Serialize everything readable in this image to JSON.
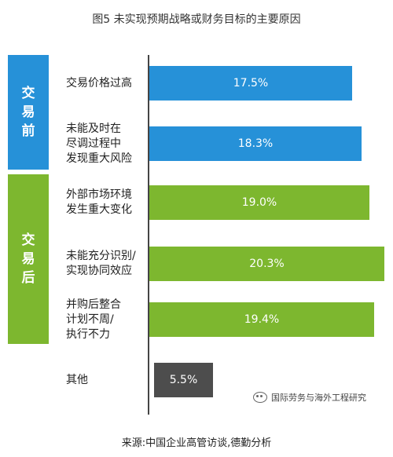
{
  "title": "图5 未实现预期战略或财务目标的主要原因",
  "source": "来源:中国企业高管访谈,德勤分析",
  "watermark": "国际劳务与海外工程研究",
  "colors": {
    "pre": "#2691d8",
    "post": "#7db72f",
    "other": "#4d4d4d"
  },
  "phases": [
    {
      "label": "交易前",
      "color": "#2691d8"
    },
    {
      "label": "交易后",
      "color": "#7db72f"
    }
  ],
  "chart_data": {
    "type": "bar",
    "orientation": "horizontal",
    "title": "图5 未实现预期战略或财务目标的主要原因",
    "categories": [
      "交易价格过高",
      "未能及时在尽调过程中发现重大风险",
      "外部市场环境发生重大变化",
      "未能充分识别/实现协同效应",
      "并购后整合计划不周/执行不力",
      "其他"
    ],
    "category_lines": [
      [
        "交易价格过高"
      ],
      [
        "未能及时在",
        "尽调过程中",
        "发现重大风险"
      ],
      [
        "外部市场环境",
        "发生重大变化"
      ],
      [
        "未能充分识别/",
        "实现协同效应"
      ],
      [
        "并购后整合",
        "计划不周/",
        "执行不力"
      ],
      [
        "其他"
      ]
    ],
    "values": [
      17.5,
      18.3,
      19.0,
      20.3,
      19.4,
      5.5
    ],
    "value_labels": [
      "17.5%",
      "18.3%",
      "19.0%",
      "20.3%",
      "19.4%",
      "5.5%"
    ],
    "groups": [
      "交易前",
      "交易前",
      "交易后",
      "交易后",
      "交易后",
      ""
    ],
    "xlim": [
      0,
      20.5
    ],
    "grid": false,
    "legend": "none"
  }
}
